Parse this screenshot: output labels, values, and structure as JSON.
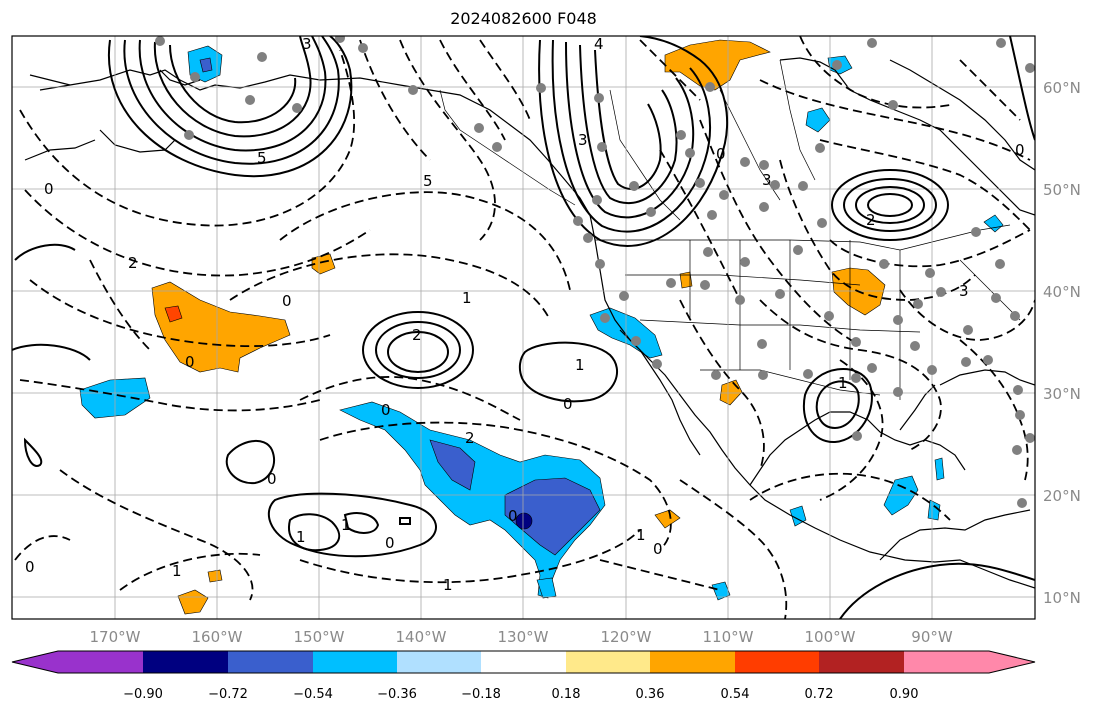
{
  "title": "2024082600 F048",
  "map": {
    "lat_labels": [
      "60°N",
      "50°N",
      "40°N",
      "30°N",
      "20°N",
      "10°N"
    ],
    "lon_labels": [
      "170°W",
      "160°W",
      "150°W",
      "140°W",
      "130°W",
      "120°W",
      "110°W",
      "100°W",
      "90°W"
    ],
    "contour_labels": [
      "3",
      "4",
      "5",
      "2",
      "0",
      "1"
    ],
    "colors": {
      "neg_strong": "#000080",
      "neg_mid": "#3a5fcd",
      "neg_light": "#00bfff",
      "pos_light": "#ffa500",
      "pos_strong": "#ff4500",
      "station": "#808080"
    }
  },
  "colorbar": {
    "colors": [
      "#9932cc",
      "#000080",
      "#3a5fcd",
      "#00bfff",
      "#b0e0ff",
      "#ffffff",
      "#ffe98a",
      "#ffa500",
      "#ff3d00",
      "#b22222",
      "#ff88aa"
    ],
    "tick_labels": [
      "−0.90",
      "−0.72",
      "−0.54",
      "−0.36",
      "−0.18",
      "0.18",
      "0.36",
      "0.54",
      "0.72",
      "0.90"
    ]
  }
}
